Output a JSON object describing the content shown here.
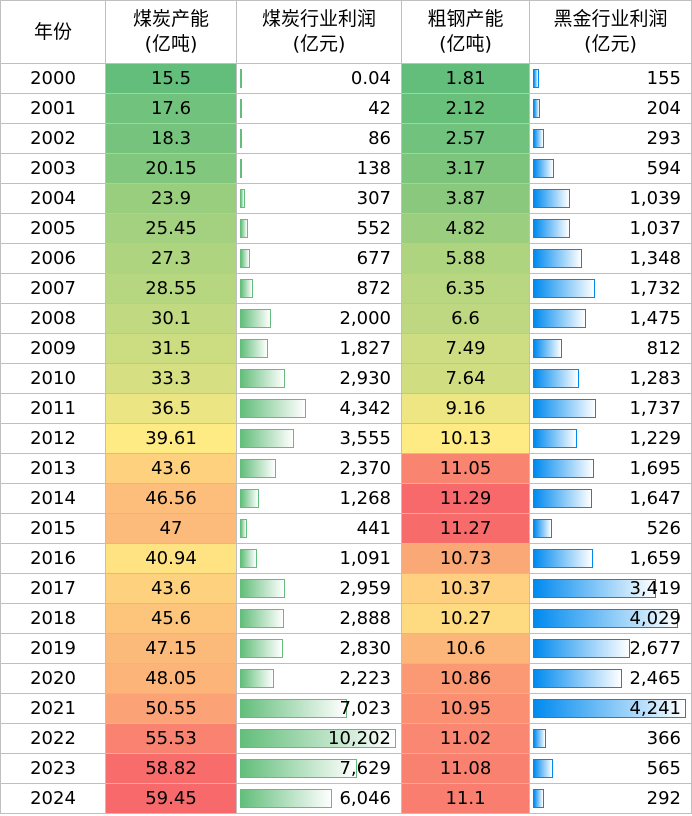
{
  "headers": {
    "year": "年份",
    "coal_capacity": [
      "煤炭产能",
      "(亿吨)"
    ],
    "coal_profit": [
      "煤炭行业利润",
      "(亿元)"
    ],
    "steel_capacity": [
      "粗钢产能",
      "(亿吨)"
    ],
    "metal_profit": [
      "黑金行业利润",
      "(亿元)"
    ]
  },
  "colors": {
    "scale_low": "#63be7b",
    "scale_mid": "#ffeb84",
    "scale_high": "#f8696b",
    "bar_green": "#63be7b",
    "bar_blue": "#008aef",
    "grid": "#bfbfbf"
  },
  "rows": [
    {
      "year": "2000",
      "coal_capacity": "15.5",
      "coal_profit": "0.04",
      "steel_capacity": "1.81",
      "metal_profit": "155"
    },
    {
      "year": "2001",
      "coal_capacity": "17.6",
      "coal_profit": "42",
      "steel_capacity": "2.12",
      "metal_profit": "204"
    },
    {
      "year": "2002",
      "coal_capacity": "18.3",
      "coal_profit": "86",
      "steel_capacity": "2.57",
      "metal_profit": "293"
    },
    {
      "year": "2003",
      "coal_capacity": "20.15",
      "coal_profit": "138",
      "steel_capacity": "3.17",
      "metal_profit": "594"
    },
    {
      "year": "2004",
      "coal_capacity": "23.9",
      "coal_profit": "307",
      "steel_capacity": "3.87",
      "metal_profit": "1,039"
    },
    {
      "year": "2005",
      "coal_capacity": "25.45",
      "coal_profit": "552",
      "steel_capacity": "4.82",
      "metal_profit": "1,037"
    },
    {
      "year": "2006",
      "coal_capacity": "27.3",
      "coal_profit": "677",
      "steel_capacity": "5.88",
      "metal_profit": "1,348"
    },
    {
      "year": "2007",
      "coal_capacity": "28.55",
      "coal_profit": "872",
      "steel_capacity": "6.35",
      "metal_profit": "1,732"
    },
    {
      "year": "2008",
      "coal_capacity": "30.1",
      "coal_profit": "2,000",
      "steel_capacity": "6.6",
      "metal_profit": "1,475"
    },
    {
      "year": "2009",
      "coal_capacity": "31.5",
      "coal_profit": "1,827",
      "steel_capacity": "7.49",
      "metal_profit": "812"
    },
    {
      "year": "2010",
      "coal_capacity": "33.3",
      "coal_profit": "2,930",
      "steel_capacity": "7.64",
      "metal_profit": "1,283"
    },
    {
      "year": "2011",
      "coal_capacity": "36.5",
      "coal_profit": "4,342",
      "steel_capacity": "9.16",
      "metal_profit": "1,737"
    },
    {
      "year": "2012",
      "coal_capacity": "39.61",
      "coal_profit": "3,555",
      "steel_capacity": "10.13",
      "metal_profit": "1,229"
    },
    {
      "year": "2013",
      "coal_capacity": "43.6",
      "coal_profit": "2,370",
      "steel_capacity": "11.05",
      "metal_profit": "1,695"
    },
    {
      "year": "2014",
      "coal_capacity": "46.56",
      "coal_profit": "1,268",
      "steel_capacity": "11.29",
      "metal_profit": "1,647"
    },
    {
      "year": "2015",
      "coal_capacity": "47",
      "coal_profit": "441",
      "steel_capacity": "11.27",
      "metal_profit": "526"
    },
    {
      "year": "2016",
      "coal_capacity": "40.94",
      "coal_profit": "1,091",
      "steel_capacity": "10.73",
      "metal_profit": "1,659"
    },
    {
      "year": "2017",
      "coal_capacity": "43.6",
      "coal_profit": "2,959",
      "steel_capacity": "10.37",
      "metal_profit": "3,419"
    },
    {
      "year": "2018",
      "coal_capacity": "45.6",
      "coal_profit": "2,888",
      "steel_capacity": "10.27",
      "metal_profit": "4,029"
    },
    {
      "year": "2019",
      "coal_capacity": "47.15",
      "coal_profit": "2,830",
      "steel_capacity": "10.6",
      "metal_profit": "2,677"
    },
    {
      "year": "2020",
      "coal_capacity": "48.05",
      "coal_profit": "2,223",
      "steel_capacity": "10.86",
      "metal_profit": "2,465"
    },
    {
      "year": "2021",
      "coal_capacity": "50.55",
      "coal_profit": "7,023",
      "steel_capacity": "10.95",
      "metal_profit": "4,241"
    },
    {
      "year": "2022",
      "coal_capacity": "55.53",
      "coal_profit": "10,202",
      "steel_capacity": "11.02",
      "metal_profit": "366"
    },
    {
      "year": "2023",
      "coal_capacity": "58.82",
      "coal_profit": "7,629",
      "steel_capacity": "11.08",
      "metal_profit": "565"
    },
    {
      "year": "2024",
      "coal_capacity": "59.45",
      "coal_profit": "6,046",
      "steel_capacity": "11.1",
      "metal_profit": "292"
    }
  ]
}
